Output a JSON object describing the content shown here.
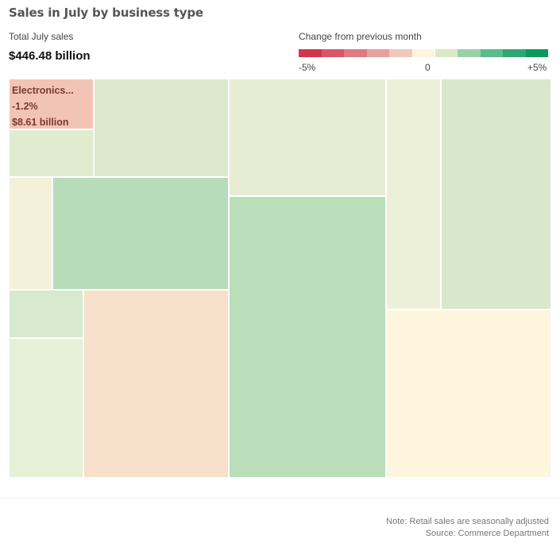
{
  "header": {
    "title": "Sales in July by business type",
    "total_label": "Total July sales",
    "total_value": "$446.48 billion"
  },
  "legend": {
    "title": "Change from previous month",
    "colors": [
      "#d1364d",
      "#d85766",
      "#df7a80",
      "#e6a29f",
      "#efc9bc",
      "#fbf5dc",
      "#d9e9c8",
      "#99d0a9",
      "#5cbb8b",
      "#2fa772",
      "#0e9860"
    ],
    "min_label": "-5%",
    "mid_label": "0",
    "max_label": "+5%"
  },
  "chart_data": {
    "type": "heatmap",
    "title": "Sales in July by business type",
    "color_scale": {
      "min": -5,
      "max": 5,
      "unit": "%"
    },
    "tiles": [
      {
        "label_name": "Electronics...",
        "label_change": "-1.2%",
        "label_value": "$8.61 billion",
        "color": "#f2c4b6"
      },
      {
        "color": "#e1ebd0"
      },
      {
        "color": "#dce8cb"
      },
      {
        "color": "#f3f1d9"
      },
      {
        "color": "#b6dcb9"
      },
      {
        "color": "#d7e9cf"
      },
      {
        "color": "#e6efd8"
      },
      {
        "color": "#f7e0cc"
      },
      {
        "color": "#e7edd4"
      },
      {
        "color": "#badeba"
      },
      {
        "color": "#edf0d9"
      },
      {
        "color": "#d9e7cb"
      },
      {
        "color": "#fdf5dd"
      }
    ]
  },
  "footer": {
    "note": "Note: Retail sales are seasonally adjusted",
    "source": "Source: Commerce Department"
  }
}
